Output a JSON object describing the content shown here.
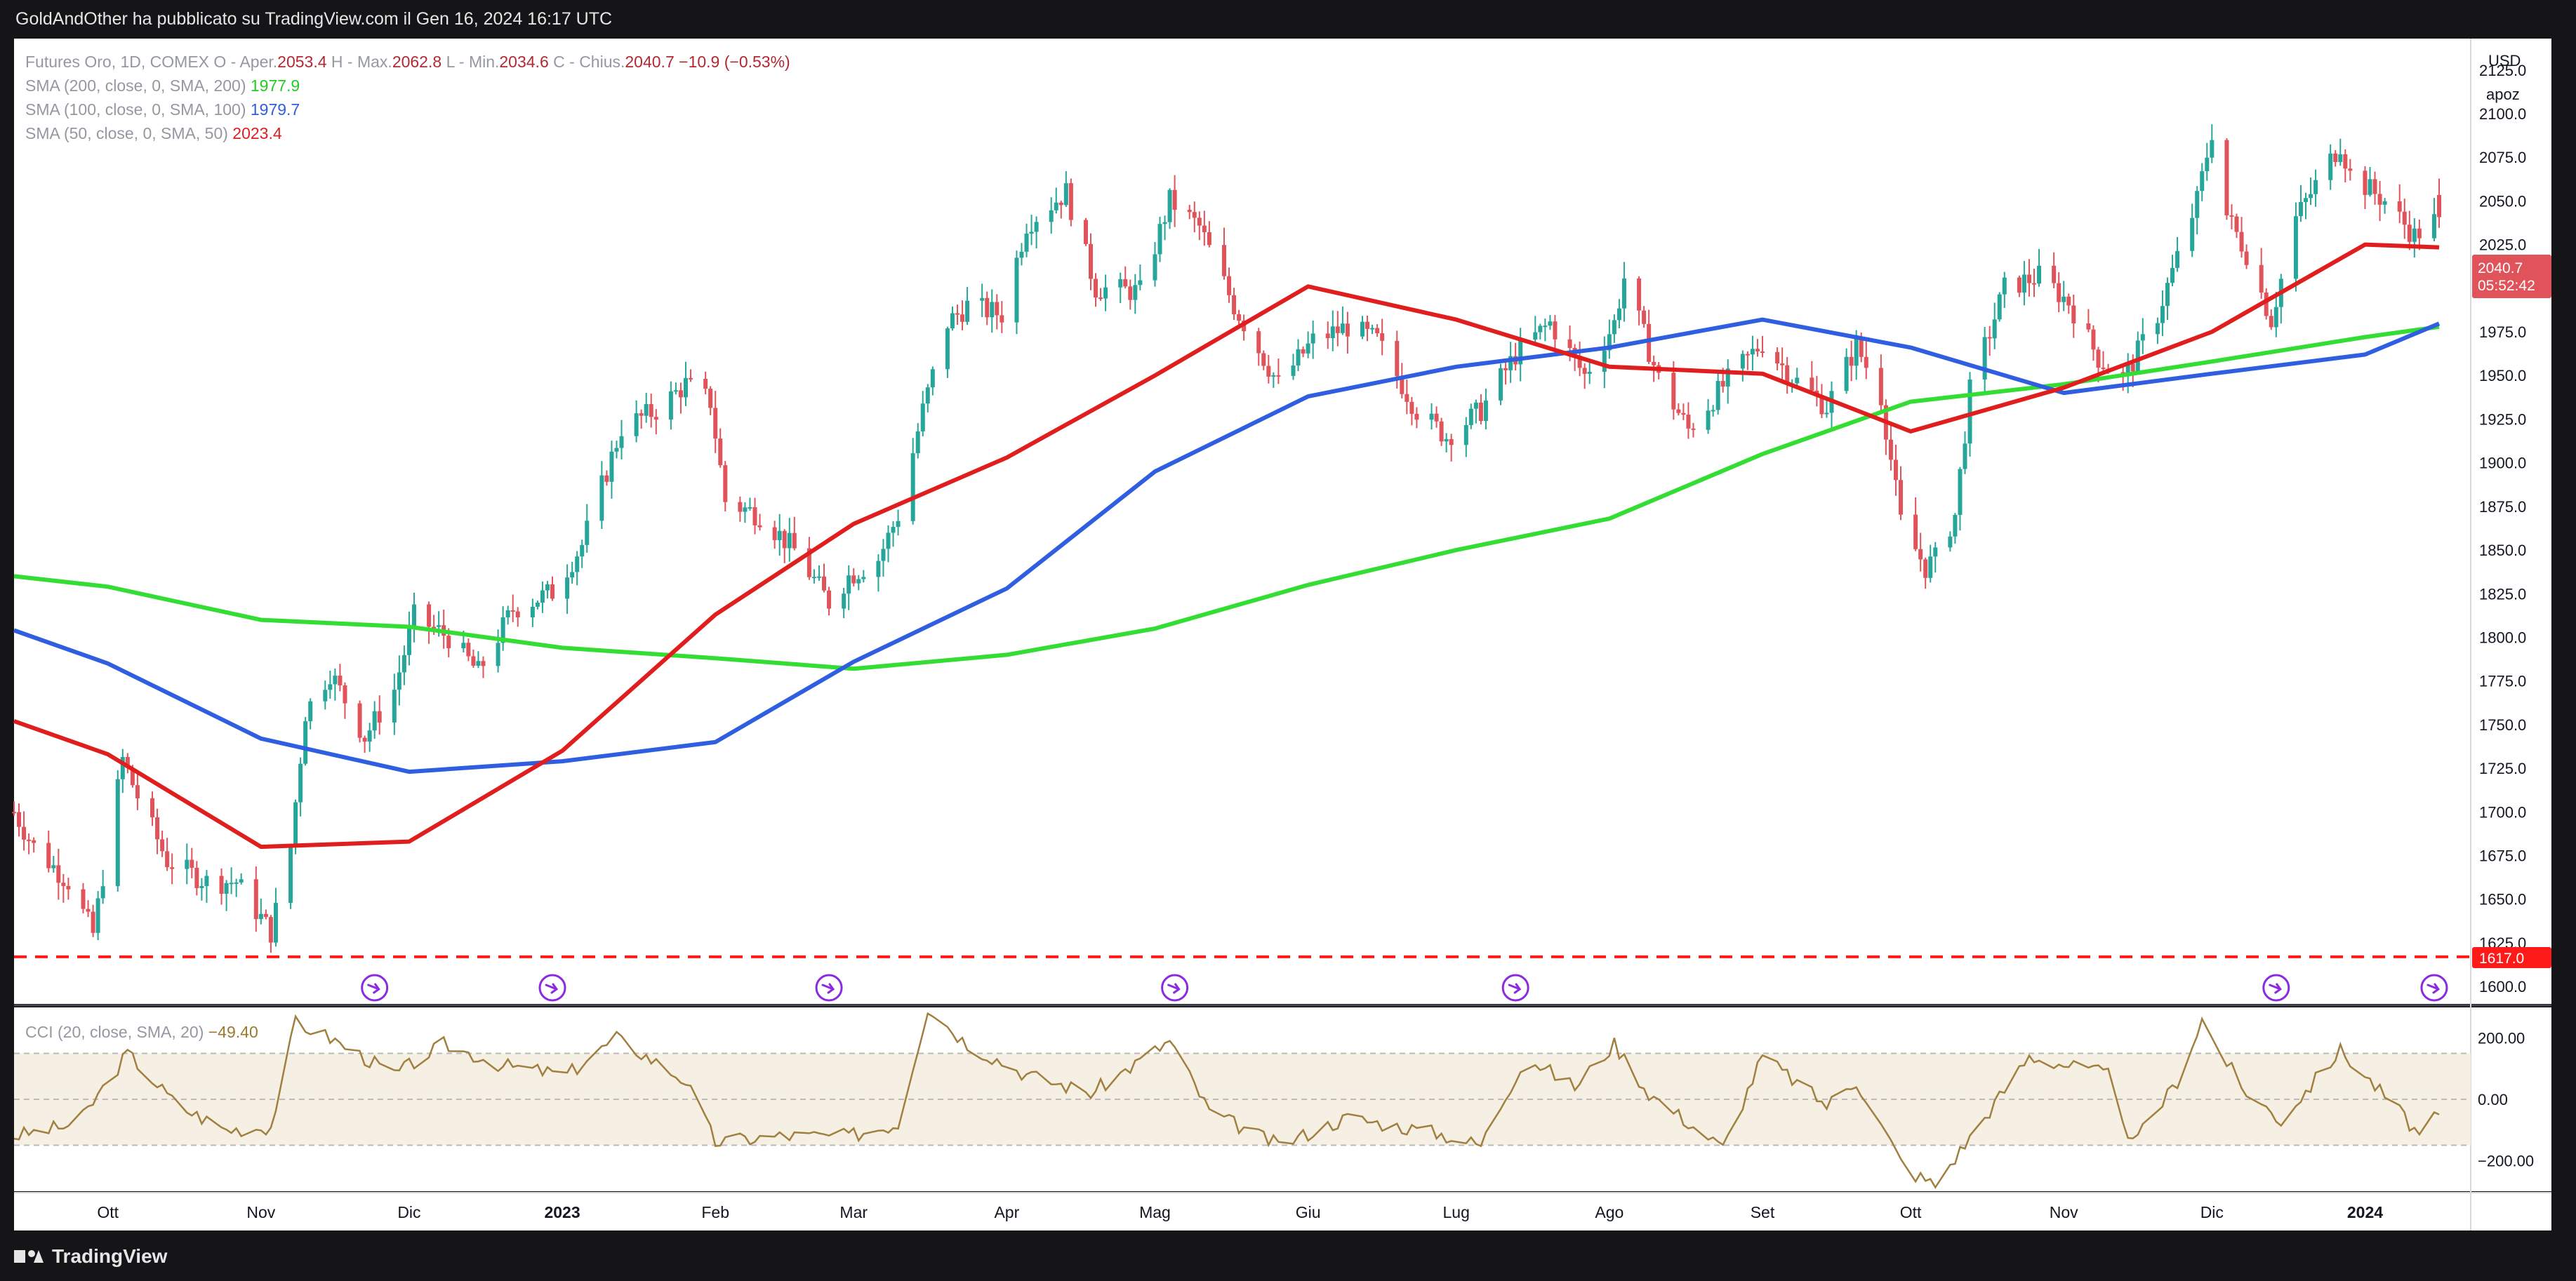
{
  "header": {
    "published": "GoldAndOther ha pubblicato su TradingView.com il Gen 16, 2024 16:17 UTC"
  },
  "footer": {
    "brand": "TradingView"
  },
  "axis": {
    "currency": "USD",
    "scale_mode": "apoz"
  },
  "legend": {
    "symbol": "Futures Oro, 1D, COMEX",
    "o_label": "O - Aper.",
    "open": "2053.4",
    "h_label": "H - Max.",
    "high": "2062.8",
    "l_label": "L - Min.",
    "low": "2034.6",
    "c_label": "C - Chius.",
    "close": "2040.7",
    "change": "−10.9 (−0.53%)",
    "sma200_label": "SMA (200, close, 0, SMA, 200)",
    "sma200_value": "1977.9",
    "sma100_label": "SMA (100, close, 0, SMA, 100)",
    "sma100_value": "1979.7",
    "sma50_label": "SMA (50, close, 0, SMA, 50)",
    "sma50_value": "2023.4",
    "cci_label": "CCI (20, close, SMA, 20)",
    "cci_value": "−49.40"
  },
  "price_badge": {
    "price": "2040.7",
    "countdown": "05:52:42"
  },
  "hline_badge": "1617.0",
  "colors": {
    "background": "#ffffff",
    "up": "#26a69a",
    "down": "#e0535a",
    "sma200": "#33dd33",
    "sma100": "#2f5fe0",
    "sma50": "#e01e1e",
    "hline": "#ff1a1a",
    "cci": "#a08040",
    "cci_band": "#f6efe3",
    "event": "#8a2be2"
  },
  "chart_data": [
    {
      "type": "candlestick",
      "title": "Futures Oro, 1D, COMEX",
      "xlabel": "",
      "ylabel": "USD",
      "x_range": [
        "2022-09-12",
        "2024-01-16"
      ],
      "ylim": [
        1590,
        2143
      ],
      "y_ticks": [
        1600,
        1625,
        1650,
        1675,
        1700,
        1725,
        1750,
        1775,
        1800,
        1825,
        1850,
        1875,
        1900,
        1925,
        1950,
        1975,
        2000,
        2025,
        2050,
        2075,
        2100,
        2125
      ],
      "y_tick_labels": [
        "1600.0",
        "1625.0",
        "1650.0",
        "1675.0",
        "1700.0",
        "1725.0",
        "1750.0",
        "1775.0",
        "1800.0",
        "1825.0",
        "1850.0",
        "1875.0",
        "1900.0",
        "1925.0",
        "1950.0",
        "1975.0",
        "2000.0",
        "2025.0",
        "2050.0",
        "2075.0",
        "2100.0",
        "2125.0"
      ],
      "x_ticks": [
        "2022-10-01",
        "2022-11-01",
        "2022-12-01",
        "2023-01-01",
        "2023-02-01",
        "2023-03-01",
        "2023-04-01",
        "2023-05-01",
        "2023-06-01",
        "2023-07-01",
        "2023-08-01",
        "2023-09-01",
        "2023-10-01",
        "2023-11-01",
        "2023-12-01",
        "2024-01-01"
      ],
      "x_tick_labels": [
        "Ott",
        "Nov",
        "Dic",
        "2023",
        "Feb",
        "Mar",
        "Apr",
        "Mag",
        "Giu",
        "Lug",
        "Ago",
        "Set",
        "Ott",
        "Nov",
        "Dic",
        "2024"
      ],
      "grid": false,
      "price_path": [
        [
          "2022-09-12",
          1700
        ],
        [
          "2022-09-16",
          1680
        ],
        [
          "2022-09-23",
          1660
        ],
        [
          "2022-09-28",
          1630
        ],
        [
          "2022-10-04",
          1730
        ],
        [
          "2022-10-07",
          1709
        ],
        [
          "2022-10-13",
          1672
        ],
        [
          "2022-10-21",
          1660
        ],
        [
          "2022-10-27",
          1660
        ],
        [
          "2022-11-03",
          1631
        ],
        [
          "2022-11-07",
          1680
        ],
        [
          "2022-11-10",
          1757
        ],
        [
          "2022-11-15",
          1780
        ],
        [
          "2022-11-22",
          1743
        ],
        [
          "2022-11-28",
          1770
        ],
        [
          "2022-12-02",
          1812
        ],
        [
          "2022-12-09",
          1800
        ],
        [
          "2022-12-15",
          1780
        ],
        [
          "2022-12-22",
          1816
        ],
        [
          "2022-12-30",
          1826
        ],
        [
          "2023-01-05",
          1853
        ],
        [
          "2023-01-13",
          1920
        ],
        [
          "2023-01-20",
          1930
        ],
        [
          "2023-01-26",
          1945
        ],
        [
          "2023-01-31",
          1935
        ],
        [
          "2023-02-03",
          1878
        ],
        [
          "2023-02-10",
          1870
        ],
        [
          "2023-02-17",
          1850
        ],
        [
          "2023-02-24",
          1820
        ],
        [
          "2023-02-28",
          1835
        ],
        [
          "2023-03-06",
          1845
        ],
        [
          "2023-03-10",
          1870
        ],
        [
          "2023-03-15",
          1930
        ],
        [
          "2023-03-20",
          1980
        ],
        [
          "2023-03-24",
          1990
        ],
        [
          "2023-03-31",
          1985
        ],
        [
          "2023-04-05",
          2037
        ],
        [
          "2023-04-13",
          2055
        ],
        [
          "2023-04-19",
          2000
        ],
        [
          "2023-04-28",
          1998
        ],
        [
          "2023-05-04",
          2050
        ],
        [
          "2023-05-10",
          2035
        ],
        [
          "2023-05-17",
          1990
        ],
        [
          "2023-05-26",
          1945
        ],
        [
          "2023-06-02",
          1970
        ],
        [
          "2023-06-09",
          1978
        ],
        [
          "2023-06-15",
          1970
        ],
        [
          "2023-06-23",
          1930
        ],
        [
          "2023-06-29",
          1915
        ],
        [
          "2023-07-06",
          1930
        ],
        [
          "2023-07-13",
          1962
        ],
        [
          "2023-07-20",
          1980
        ],
        [
          "2023-07-27",
          1950
        ],
        [
          "2023-08-02",
          1980
        ],
        [
          "2023-08-04",
          2006
        ],
        [
          "2023-08-11",
          1948
        ],
        [
          "2023-08-17",
          1919
        ],
        [
          "2023-08-24",
          1944
        ],
        [
          "2023-09-01",
          1969
        ],
        [
          "2023-09-07",
          1949
        ],
        [
          "2023-09-14",
          1932
        ],
        [
          "2023-09-20",
          1967
        ],
        [
          "2023-09-25",
          1938
        ],
        [
          "2023-09-29",
          1866
        ],
        [
          "2023-10-04",
          1840
        ],
        [
          "2023-10-06",
          1845
        ],
        [
          "2023-10-10",
          1870
        ],
        [
          "2023-10-13",
          1941
        ],
        [
          "2023-10-20",
          2000
        ],
        [
          "2023-10-27",
          2007
        ],
        [
          "2023-11-02",
          1992
        ],
        [
          "2023-11-08",
          1960
        ],
        [
          "2023-11-13",
          1947
        ],
        [
          "2023-11-20",
          1985
        ],
        [
          "2023-11-28",
          2050
        ],
        [
          "2023-12-01",
          2090
        ],
        [
          "2023-12-04",
          2042
        ],
        [
          "2023-12-08",
          2020
        ],
        [
          "2023-12-13",
          1982
        ],
        [
          "2023-12-18",
          2040
        ],
        [
          "2023-12-27",
          2083
        ],
        [
          "2023-12-29",
          2065
        ],
        [
          "2024-01-05",
          2050
        ],
        [
          "2024-01-11",
          2030
        ],
        [
          "2024-01-16",
          2040.7
        ]
      ],
      "last_bar": {
        "date": "2024-01-16",
        "open": 2053.4,
        "high": 2062.8,
        "low": 2034.6,
        "close": 2040.7,
        "change": -10.9,
        "change_pct": -0.53
      },
      "series": [
        {
          "name": "SMA (200, close, 0, SMA, 200)",
          "color": "#33dd33",
          "points": [
            [
              "2022-09-12",
              1835
            ],
            [
              "2022-10-01",
              1829
            ],
            [
              "2022-11-01",
              1810
            ],
            [
              "2022-12-01",
              1806
            ],
            [
              "2023-01-01",
              1794
            ],
            [
              "2023-02-01",
              1788
            ],
            [
              "2023-03-01",
              1782
            ],
            [
              "2023-04-01",
              1790
            ],
            [
              "2023-05-01",
              1805
            ],
            [
              "2023-06-01",
              1830
            ],
            [
              "2023-07-01",
              1850
            ],
            [
              "2023-08-01",
              1868
            ],
            [
              "2023-09-01",
              1905
            ],
            [
              "2023-10-01",
              1935
            ],
            [
              "2023-11-01",
              1945
            ],
            [
              "2023-12-01",
              1958
            ],
            [
              "2024-01-01",
              1972
            ],
            [
              "2024-01-16",
              1977.9
            ]
          ]
        },
        {
          "name": "SMA (100, close, 0, SMA, 100)",
          "color": "#2f5fe0",
          "points": [
            [
              "2022-09-12",
              1804
            ],
            [
              "2022-10-01",
              1785
            ],
            [
              "2022-11-01",
              1742
            ],
            [
              "2022-12-01",
              1723
            ],
            [
              "2023-01-01",
              1729
            ],
            [
              "2023-02-01",
              1740
            ],
            [
              "2023-03-01",
              1786
            ],
            [
              "2023-04-01",
              1828
            ],
            [
              "2023-05-01",
              1895
            ],
            [
              "2023-06-01",
              1938
            ],
            [
              "2023-07-01",
              1955
            ],
            [
              "2023-08-01",
              1966
            ],
            [
              "2023-09-01",
              1982
            ],
            [
              "2023-10-01",
              1966
            ],
            [
              "2023-11-01",
              1940
            ],
            [
              "2023-12-01",
              1951
            ],
            [
              "2024-01-01",
              1962
            ],
            [
              "2024-01-16",
              1979.7
            ]
          ]
        },
        {
          "name": "SMA (50, close, 0, SMA, 50)",
          "color": "#e01e1e",
          "points": [
            [
              "2022-09-12",
              1752
            ],
            [
              "2022-10-01",
              1733
            ],
            [
              "2022-11-01",
              1680
            ],
            [
              "2022-12-01",
              1683
            ],
            [
              "2023-01-01",
              1735
            ],
            [
              "2023-02-01",
              1813
            ],
            [
              "2023-03-01",
              1865
            ],
            [
              "2023-04-01",
              1903
            ],
            [
              "2023-05-01",
              1950
            ],
            [
              "2023-06-01",
              2001
            ],
            [
              "2023-07-01",
              1982
            ],
            [
              "2023-08-01",
              1955
            ],
            [
              "2023-09-01",
              1951
            ],
            [
              "2023-10-01",
              1918
            ],
            [
              "2023-11-01",
              1943
            ],
            [
              "2023-12-01",
              1975
            ],
            [
              "2024-01-01",
              2025
            ],
            [
              "2024-01-16",
              2023.4
            ]
          ]
        }
      ],
      "horizontal_line": {
        "value": 1617.0,
        "style": "dashed",
        "color": "#ff1a1a"
      },
      "event_markers": [
        "2022-11-24",
        "2022-12-30",
        "2023-02-24",
        "2023-05-05",
        "2023-07-13",
        "2023-12-14",
        "2024-01-15"
      ]
    },
    {
      "type": "line",
      "title": "CCI (20, close, SMA, 20)",
      "xlabel": "",
      "ylabel": "",
      "ylim": [
        -300,
        300
      ],
      "y_ticks": [
        200,
        0,
        -200
      ],
      "y_tick_labels": [
        "200.00",
        "0.00",
        "−200.00"
      ],
      "band": [
        -150,
        150
      ],
      "series": [
        {
          "name": "CCI (20, close, SMA, 20)",
          "color": "#a08040",
          "points": [
            [
              "2022-09-12",
              -120
            ],
            [
              "2022-09-25",
              -80
            ],
            [
              "2022-10-05",
              150
            ],
            [
              "2022-10-15",
              -20
            ],
            [
              "2022-10-25",
              -100
            ],
            [
              "2022-11-03",
              -90
            ],
            [
              "2022-11-08",
              250
            ],
            [
              "2022-11-15",
              200
            ],
            [
              "2022-11-28",
              80
            ],
            [
              "2022-12-08",
              180
            ],
            [
              "2022-12-20",
              110
            ],
            [
              "2023-01-02",
              80
            ],
            [
              "2023-01-12",
              200
            ],
            [
              "2023-01-26",
              60
            ],
            [
              "2023-02-01",
              -140
            ],
            [
              "2023-02-14",
              -120
            ],
            [
              "2023-02-28",
              -120
            ],
            [
              "2023-03-10",
              -80
            ],
            [
              "2023-03-16",
              300
            ],
            [
              "2023-03-24",
              180
            ],
            [
              "2023-04-05",
              80
            ],
            [
              "2023-04-18",
              20
            ],
            [
              "2023-05-04",
              190
            ],
            [
              "2023-05-12",
              -40
            ],
            [
              "2023-05-26",
              -150
            ],
            [
              "2023-06-09",
              -60
            ],
            [
              "2023-06-27",
              -110
            ],
            [
              "2023-07-06",
              -150
            ],
            [
              "2023-07-15",
              140
            ],
            [
              "2023-07-25",
              40
            ],
            [
              "2023-08-02",
              180
            ],
            [
              "2023-08-09",
              20
            ],
            [
              "2023-08-24",
              -160
            ],
            [
              "2023-09-01",
              140
            ],
            [
              "2023-09-14",
              -20
            ],
            [
              "2023-09-20",
              60
            ],
            [
              "2023-09-30",
              -230
            ],
            [
              "2023-10-06",
              -280
            ],
            [
              "2023-10-25",
              140
            ],
            [
              "2023-11-10",
              80
            ],
            [
              "2023-11-15",
              -150
            ],
            [
              "2023-11-24",
              60
            ],
            [
              "2023-11-29",
              260
            ],
            [
              "2023-12-07",
              40
            ],
            [
              "2023-12-15",
              -70
            ],
            [
              "2023-12-27",
              160
            ],
            [
              "2024-01-08",
              -40
            ],
            [
              "2024-01-12",
              -120
            ],
            [
              "2024-01-16",
              -49.4
            ]
          ]
        }
      ]
    }
  ]
}
